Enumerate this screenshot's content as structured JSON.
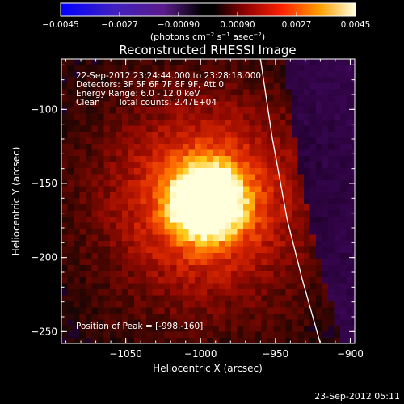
{
  "chart_data": {
    "type": "heatmap",
    "title": "Reconstructed RHESSI Image",
    "xlabel": "Heliocentric X (arcsec)",
    "ylabel": "Heliocentric Y (arcsec)",
    "xlim": [
      -1093,
      -897
    ],
    "ylim": [
      -258,
      -66
    ],
    "xticks": [
      -1050,
      -1000,
      -950,
      -900
    ],
    "xtick_labels": [
      "−1050",
      "−1000",
      "−950",
      "−900"
    ],
    "yticks": [
      -100,
      -150,
      -200,
      -250
    ],
    "ytick_labels": [
      "−100",
      "−150",
      "−200",
      "−250"
    ],
    "colorbar": {
      "range": [
        -0.0045,
        0.0045
      ],
      "ticks": [
        -0.0045,
        -0.0027,
        -0.0009,
        0.0009,
        0.0027,
        0.0045
      ],
      "tick_labels": [
        "−0.0045",
        "−0.0027",
        "−0.00090",
        "0.00090",
        "0.0027",
        "0.0045"
      ],
      "unit_label_parts": [
        "(photons cm",
        "−2",
        " s",
        "−1",
        " asec",
        "−2",
        ")"
      ]
    },
    "annotations": [
      "22-Sep-2012 23:24:44.000 to 23:28:18.000",
      "Detectors: 3F 5F 6F 7F 8F 9F, Att 0",
      "Energy Range: 6.0 - 12.0 keV",
      "Clean",
      "Total counts: 2.47E+04"
    ],
    "peak_label": "Position of Peak = [-998,-160]",
    "peak": [
      -998,
      -160
    ],
    "limb_curve": [
      [
        -960,
        -66
      ],
      [
        -952,
        -120
      ],
      [
        -942,
        -175
      ],
      [
        -932,
        -215
      ],
      [
        -920,
        -258
      ]
    ],
    "grid": false,
    "legend": "none"
  },
  "footer_date": "23-Sep-2012 05:11"
}
